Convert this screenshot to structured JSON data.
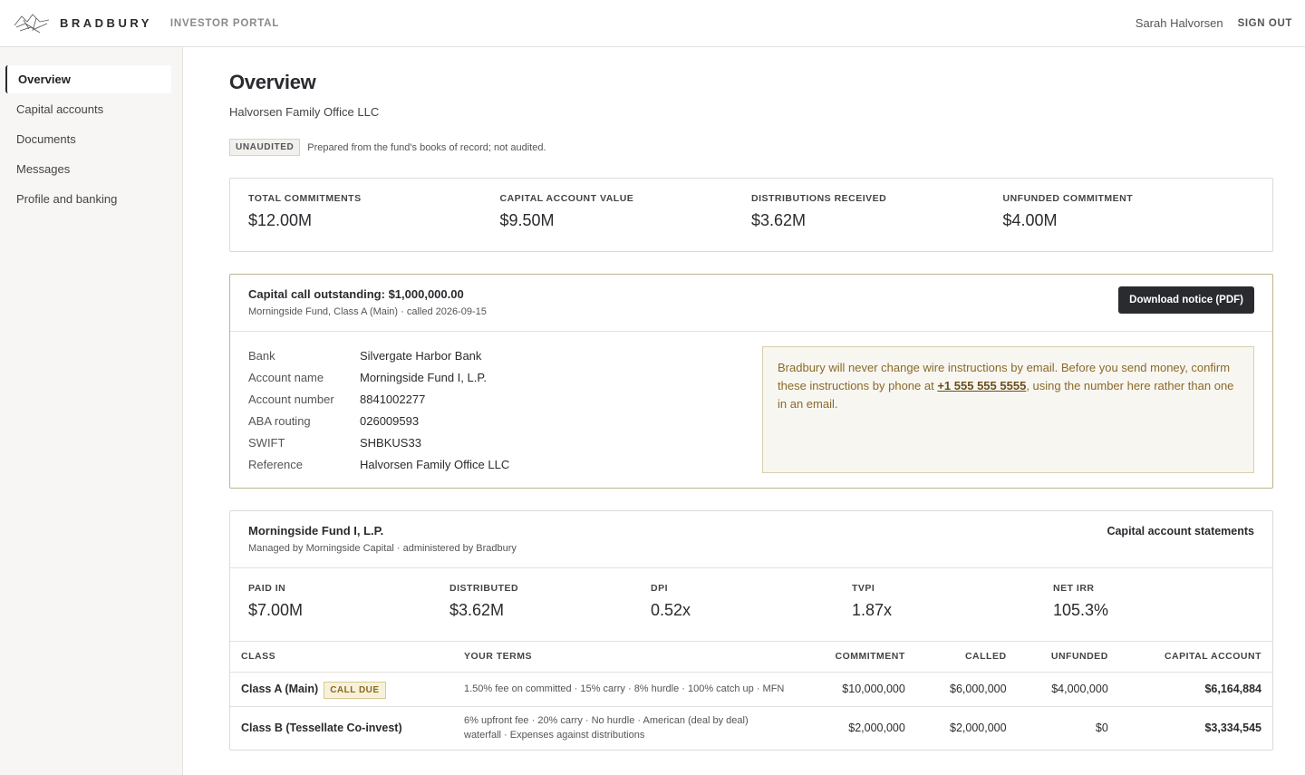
{
  "header": {
    "brand": "BRADBURY",
    "portal": "INVESTOR PORTAL",
    "user": "Sarah Halvorsen",
    "sign_out": "SIGN OUT"
  },
  "nav": [
    "Overview",
    "Capital accounts",
    "Documents",
    "Messages",
    "Profile and banking"
  ],
  "page": {
    "title": "Overview",
    "subtitle": "Halvorsen Family Office LLC",
    "badge": "UNAUDITED",
    "note": "Prepared from the fund's books of record; not audited."
  },
  "summary": [
    {
      "label": "TOTAL COMMITMENTS",
      "value": "$12.00M"
    },
    {
      "label": "CAPITAL ACCOUNT VALUE",
      "value": "$9.50M"
    },
    {
      "label": "DISTRIBUTIONS RECEIVED",
      "value": "$3.62M"
    },
    {
      "label": "UNFUNDED COMMITMENT",
      "value": "$4.00M"
    }
  ],
  "capital_call": {
    "title": "Capital call outstanding: $1,000,000.00",
    "meta": "Morningside Fund, Class A (Main) · called 2026-09-15",
    "button": "Download notice (PDF)",
    "wire": [
      {
        "label": "Bank",
        "value": "Silvergate Harbor Bank"
      },
      {
        "label": "Account name",
        "value": "Morningside Fund I, L.P."
      },
      {
        "label": "Account number",
        "value": "8841002277"
      },
      {
        "label": "ABA routing",
        "value": "026009593"
      },
      {
        "label": "SWIFT",
        "value": "SHBKUS33"
      },
      {
        "label": "Reference",
        "value": "Halvorsen Family Office LLC"
      }
    ],
    "warning": {
      "before": "Bradbury will never change wire instructions by email. Before you send money, confirm these instructions by phone at ",
      "phone": "+1 555 555 5555",
      "after": ", using the number here rather than one in an email."
    }
  },
  "fund": {
    "name": "Morningside Fund I, L.P.",
    "meta": "Managed by Morningside Capital · administered by Bradbury",
    "link": "Capital account statements",
    "metrics": [
      {
        "label": "PAID IN",
        "value": "$7.00M"
      },
      {
        "label": "DISTRIBUTED",
        "value": "$3.62M"
      },
      {
        "label": "DPI",
        "value": "0.52x"
      },
      {
        "label": "TVPI",
        "value": "1.87x"
      },
      {
        "label": "NET IRR",
        "value": "105.3%"
      }
    ],
    "table": {
      "columns": [
        "CLASS",
        "YOUR TERMS",
        "COMMITMENT",
        "CALLED",
        "UNFUNDED",
        "CAPITAL ACCOUNT"
      ],
      "rows": [
        {
          "class": "Class A (Main)",
          "badge": "CALL DUE",
          "terms": "1.50% fee on committed · 15% carry · 8% hurdle · 100% catch up · MFN",
          "commitment": "$10,000,000",
          "called": "$6,000,000",
          "unfunded": "$4,000,000",
          "capital_account": "$6,164,884"
        },
        {
          "class": "Class B (Tessellate Co-invest)",
          "terms": "6% upfront fee · 20% carry · No hurdle · American (deal by deal) waterfall · Expenses against distributions",
          "commitment": "$2,000,000",
          "called": "$2,000,000",
          "unfunded": "$0",
          "capital_account": "$3,334,545"
        }
      ]
    }
  }
}
